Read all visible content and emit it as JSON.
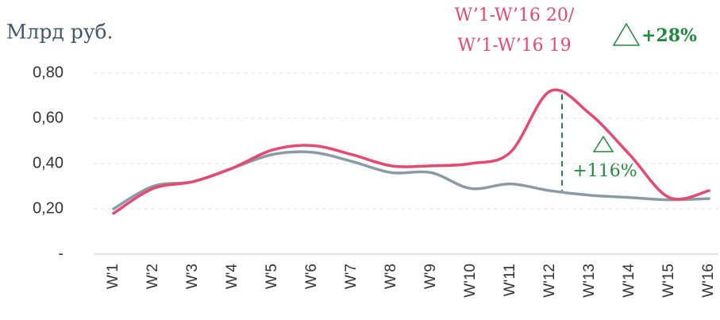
{
  "chart_data": {
    "type": "line",
    "y_label": "Млрд руб.",
    "annotations": [
      "W’1-W’16 20/",
      "W’1-W’16 19",
      "+28%",
      "+116%"
    ],
    "categories": [
      "W'1",
      "W'2",
      "W'3",
      "W'4",
      "W'5",
      "W'6",
      "W'7",
      "W'8",
      "W'9",
      "W'10",
      "W'11",
      "W'12",
      "W'13",
      "W'14",
      "W'15",
      "W'16"
    ],
    "series": [
      {
        "color": "#e8486f",
        "values": [
          0.18,
          0.29,
          0.32,
          0.38,
          0.46,
          0.48,
          0.44,
          0.39,
          0.39,
          0.4,
          0.45,
          0.72,
          0.62,
          0.44,
          0.25,
          0.28
        ]
      },
      {
        "color": "#8a9ba8",
        "values": [
          0.2,
          0.3,
          0.32,
          0.38,
          0.44,
          0.45,
          0.41,
          0.36,
          0.36,
          0.29,
          0.31,
          0.28,
          0.26,
          0.25,
          0.24,
          0.245
        ]
      }
    ],
    "ylim": [
      0,
      0.8
    ],
    "yticks": [
      {
        "value": 0,
        "label": "-"
      },
      {
        "value": 0.2,
        "label": "0,20"
      },
      {
        "value": 0.4,
        "label": "0,40"
      },
      {
        "value": 0.6,
        "label": "0,60"
      },
      {
        "value": 0.8,
        "label": "0,80"
      }
    ],
    "grid": true
  }
}
